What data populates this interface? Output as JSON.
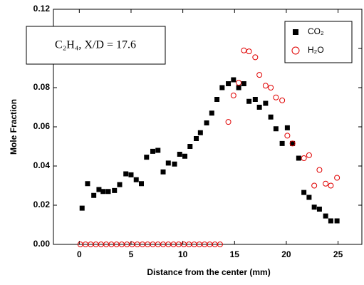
{
  "chart_data": {
    "type": "scatter",
    "annotation": "C₂H₄, X/D = 17.6",
    "x_label": "Distance from the center (mm)",
    "y_label": "Mole Fraction",
    "xlim": [
      -2.5,
      27.3
    ],
    "ylim": [
      0,
      0.12
    ],
    "xticks": [
      0,
      5,
      10,
      15,
      20,
      25
    ],
    "yticks": [
      {
        "value": 0,
        "label": "0.00"
      },
      {
        "value": 0.02,
        "label": "0.02"
      },
      {
        "value": 0.04,
        "label": "0.04"
      },
      {
        "value": 0.06,
        "label": "0.06"
      },
      {
        "value": 0.08,
        "label": "0.08"
      },
      {
        "value": 0.1,
        "label": "0.10"
      },
      {
        "value": 0.12,
        "label": "0.12"
      }
    ],
    "legend": "upper right",
    "series": [
      {
        "name": "CO₂",
        "color": "#000000",
        "marker": "square",
        "x": [
          0.27,
          0.8,
          1.4,
          1.9,
          2.3,
          2.8,
          3.4,
          3.9,
          4.5,
          5.0,
          5.5,
          6.0,
          6.5,
          7.1,
          7.6,
          8.1,
          8.6,
          9.2,
          9.7,
          10.2,
          10.7,
          11.3,
          11.7,
          12.3,
          12.8,
          13.3,
          13.8,
          14.4,
          14.9,
          15.4,
          15.9,
          16.4,
          17.0,
          17.4,
          18.0,
          18.5,
          19.0,
          19.6,
          20.1,
          20.6,
          21.2,
          21.7,
          22.2,
          22.7,
          23.2,
          23.8,
          24.3,
          24.9
        ],
        "values": [
          0.0185,
          0.031,
          0.025,
          0.028,
          0.027,
          0.027,
          0.0275,
          0.0305,
          0.036,
          0.0355,
          0.033,
          0.031,
          0.0445,
          0.0475,
          0.048,
          0.037,
          0.0415,
          0.041,
          0.046,
          0.045,
          0.05,
          0.054,
          0.057,
          0.062,
          0.067,
          0.074,
          0.08,
          0.082,
          0.084,
          0.08,
          0.082,
          0.073,
          0.074,
          0.07,
          0.072,
          0.065,
          0.059,
          0.0515,
          0.0595,
          0.0515,
          0.044,
          0.0265,
          0.024,
          0.019,
          0.018,
          0.0145,
          0.012,
          0.012
        ]
      },
      {
        "name": "H₂O",
        "color": "#e00000",
        "marker": "circle",
        "x": [
          0.1,
          0.6,
          1.1,
          1.6,
          2.1,
          2.6,
          3.1,
          3.6,
          4.1,
          4.6,
          5.1,
          5.6,
          6.1,
          6.6,
          7.1,
          7.6,
          8.1,
          8.6,
          9.1,
          9.6,
          10.1,
          10.6,
          11.1,
          11.6,
          12.1,
          12.6,
          13.1,
          13.6,
          14.4,
          14.9,
          15.4,
          15.9,
          16.4,
          17.0,
          17.4,
          18.0,
          18.5,
          19.0,
          19.6,
          20.1,
          20.6,
          21.7,
          22.2,
          22.7,
          23.2,
          23.8,
          24.3,
          24.9
        ],
        "values": [
          0,
          0,
          0,
          0,
          0,
          0,
          0,
          0,
          0,
          0,
          0,
          0,
          0,
          0,
          0,
          0,
          0,
          0,
          0,
          0,
          0,
          0,
          0,
          0,
          0,
          0,
          0,
          0,
          0.0625,
          0.076,
          0.0825,
          0.099,
          0.0985,
          0.0955,
          0.0865,
          0.081,
          0.08,
          0.075,
          0.0735,
          0.0555,
          0.0515,
          0.044,
          0.0455,
          0.03,
          0.038,
          0.031,
          0.03,
          0.034
        ]
      }
    ]
  }
}
